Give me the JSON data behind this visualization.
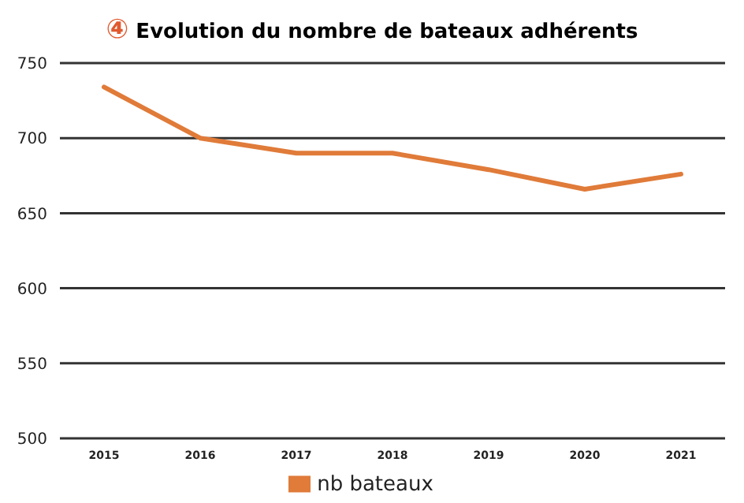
{
  "chart_data": {
    "type": "line",
    "title": "④ Evolution du nombre de bateaux adhérents",
    "categories": [
      "2015",
      "2016",
      "2017",
      "2018",
      "2019",
      "2020",
      "2021"
    ],
    "series": [
      {
        "name": "nb bateaux",
        "color": "#e07b39",
        "values": [
          734,
          700,
          690,
          690,
          679,
          666,
          676
        ]
      }
    ],
    "ylim": [
      500,
      750
    ],
    "yticks": [
      500,
      550,
      600,
      650,
      700,
      750
    ],
    "grid": "y",
    "legend": "bottom",
    "marker": "none",
    "line_style": "solid"
  }
}
